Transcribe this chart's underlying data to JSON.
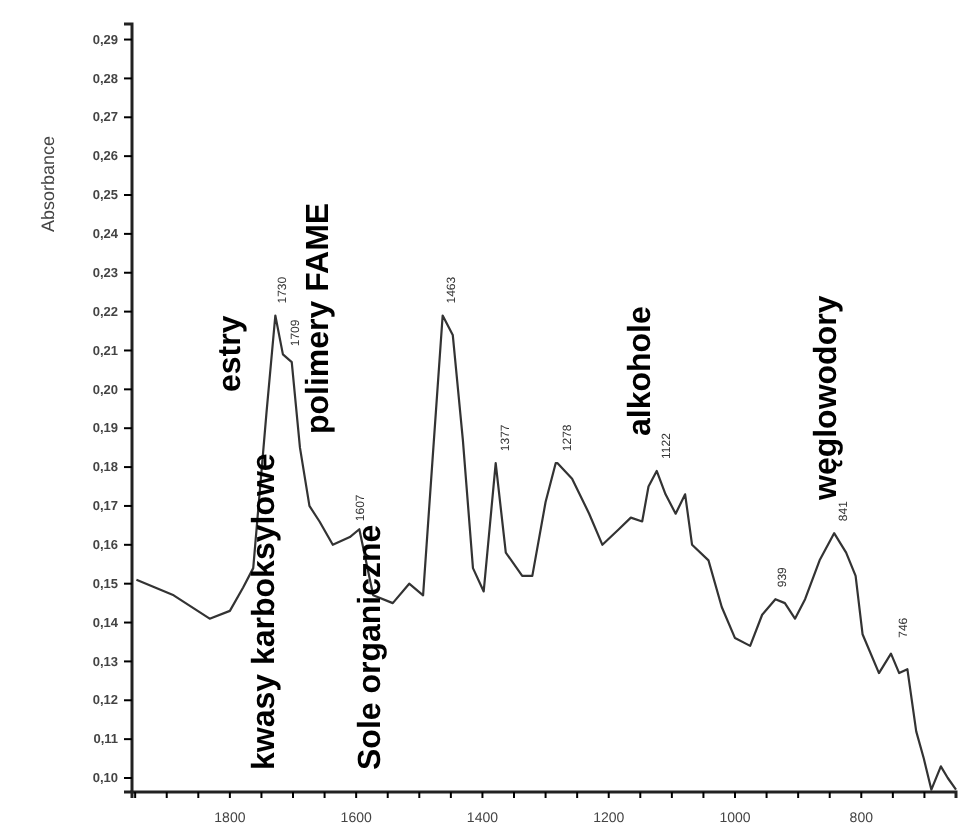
{
  "chart_data": {
    "type": "line",
    "ylabel": "Absorbance",
    "xlim": [
      1955,
      650
    ],
    "ylim": [
      0.0964,
      0.294
    ],
    "xticks": [
      {
        "value": 1950,
        "label": null
      },
      {
        "value": 1900,
        "label": null
      },
      {
        "value": 1850,
        "label": null
      },
      1800,
      {
        "value": 1750,
        "label": null
      },
      {
        "value": 1700,
        "label": null
      },
      {
        "value": 1650,
        "label": null
      },
      1600,
      {
        "value": 1550,
        "label": null
      },
      {
        "value": 1500,
        "label": null
      },
      {
        "value": 1450,
        "label": null
      },
      1400,
      {
        "value": 1350,
        "label": null
      },
      {
        "value": 1300,
        "label": null
      },
      {
        "value": 1250,
        "label": null
      },
      1200,
      {
        "value": 1150,
        "label": null
      },
      {
        "value": 1100,
        "label": null
      },
      {
        "value": 1050,
        "label": null
      },
      1000,
      {
        "value": 950,
        "label": null
      },
      {
        "value": 900,
        "label": null
      },
      {
        "value": 850,
        "label": null
      },
      800,
      {
        "value": 750,
        "label": null
      },
      {
        "value": 700,
        "label": null
      }
    ],
    "yticks": [
      {
        "value": 0.1,
        "label": "0,10"
      },
      {
        "value": 0.11,
        "label": "0,11"
      },
      {
        "value": 0.12,
        "label": "0,12"
      },
      {
        "value": 0.13,
        "label": "0,13"
      },
      {
        "value": 0.14,
        "label": "0,14"
      },
      {
        "value": 0.15,
        "label": "0,15"
      },
      {
        "value": 0.16,
        "label": "0,16"
      },
      {
        "value": 0.17,
        "label": "0,17"
      },
      {
        "value": 0.18,
        "label": "0,18"
      },
      {
        "value": 0.19,
        "label": "0,19"
      },
      {
        "value": 0.2,
        "label": "0,20"
      },
      {
        "value": 0.21,
        "label": "0,21"
      },
      {
        "value": 0.22,
        "label": "0,22"
      },
      {
        "value": 0.23,
        "label": "0,23"
      },
      {
        "value": 0.24,
        "label": "0,24"
      },
      {
        "value": 0.25,
        "label": "0,25"
      },
      {
        "value": 0.26,
        "label": "0,26"
      },
      {
        "value": 0.27,
        "label": "0,27"
      },
      {
        "value": 0.28,
        "label": "0,28"
      },
      {
        "value": 0.29,
        "label": "0,29"
      }
    ],
    "grid": false,
    "marker": "none",
    "line_style": "solid",
    "series": [
      {
        "color": "#333333",
        "x": [
          1948,
          1889,
          1832,
          1800,
          1779,
          1763,
          1742,
          1728,
          1716,
          1702,
          1689,
          1674,
          1658,
          1637,
          1610,
          1595,
          1573,
          1542,
          1516,
          1494,
          1479,
          1463,
          1447,
          1431,
          1415,
          1398,
          1379,
          1363,
          1337,
          1321,
          1300,
          1284,
          1281,
          1258,
          1231,
          1210,
          1184,
          1165,
          1147,
          1137,
          1124,
          1110,
          1094,
          1079,
          1068,
          1042,
          1021,
          1000,
          976,
          957,
          936,
          921,
          905,
          889,
          866,
          843,
          824,
          809,
          798,
          772,
          753,
          740,
          727,
          713,
          701,
          689,
          674,
          663,
          650
        ],
        "values": [
          0.151,
          0.147,
          0.141,
          0.143,
          0.149,
          0.154,
          0.194,
          0.219,
          0.209,
          0.207,
          0.185,
          0.17,
          0.166,
          0.16,
          0.162,
          0.164,
          0.147,
          0.145,
          0.15,
          0.147,
          0.182,
          0.219,
          0.214,
          0.187,
          0.154,
          0.148,
          0.181,
          0.158,
          0.152,
          0.152,
          0.171,
          0.181,
          0.181,
          0.177,
          0.168,
          0.16,
          0.164,
          0.167,
          0.166,
          0.175,
          0.179,
          0.173,
          0.168,
          0.173,
          0.16,
          0.156,
          0.144,
          0.136,
          0.134,
          0.142,
          0.146,
          0.145,
          0.141,
          0.146,
          0.156,
          0.163,
          0.158,
          0.152,
          0.137,
          0.127,
          0.132,
          0.127,
          0.128,
          0.112,
          0.105,
          0.097,
          0.103,
          0.1,
          0.097
        ]
      }
    ],
    "annotations": [
      {
        "text": "1730",
        "x": 1730,
        "y": 0.219
      },
      {
        "text": "1709",
        "x": 1709,
        "y": 0.208
      },
      {
        "text": "1607",
        "x": 1607,
        "y": 0.163
      },
      {
        "text": "1463",
        "x": 1463,
        "y": 0.219
      },
      {
        "text": "1377",
        "x": 1377,
        "y": 0.181
      },
      {
        "text": "1278",
        "x": 1278,
        "y": 0.181
      },
      {
        "text": "1122",
        "x": 1122,
        "y": 0.179
      },
      {
        "text": "939",
        "x": 939,
        "y": 0.146
      },
      {
        "text": "841",
        "x": 841,
        "y": 0.163
      },
      {
        "text": "746",
        "x": 746,
        "y": 0.133
      },
      "estry",
      "kwasy karboksylowe",
      "polimery FAME",
      "Sole organiczne",
      "alkohole",
      "węglowodory"
    ]
  }
}
